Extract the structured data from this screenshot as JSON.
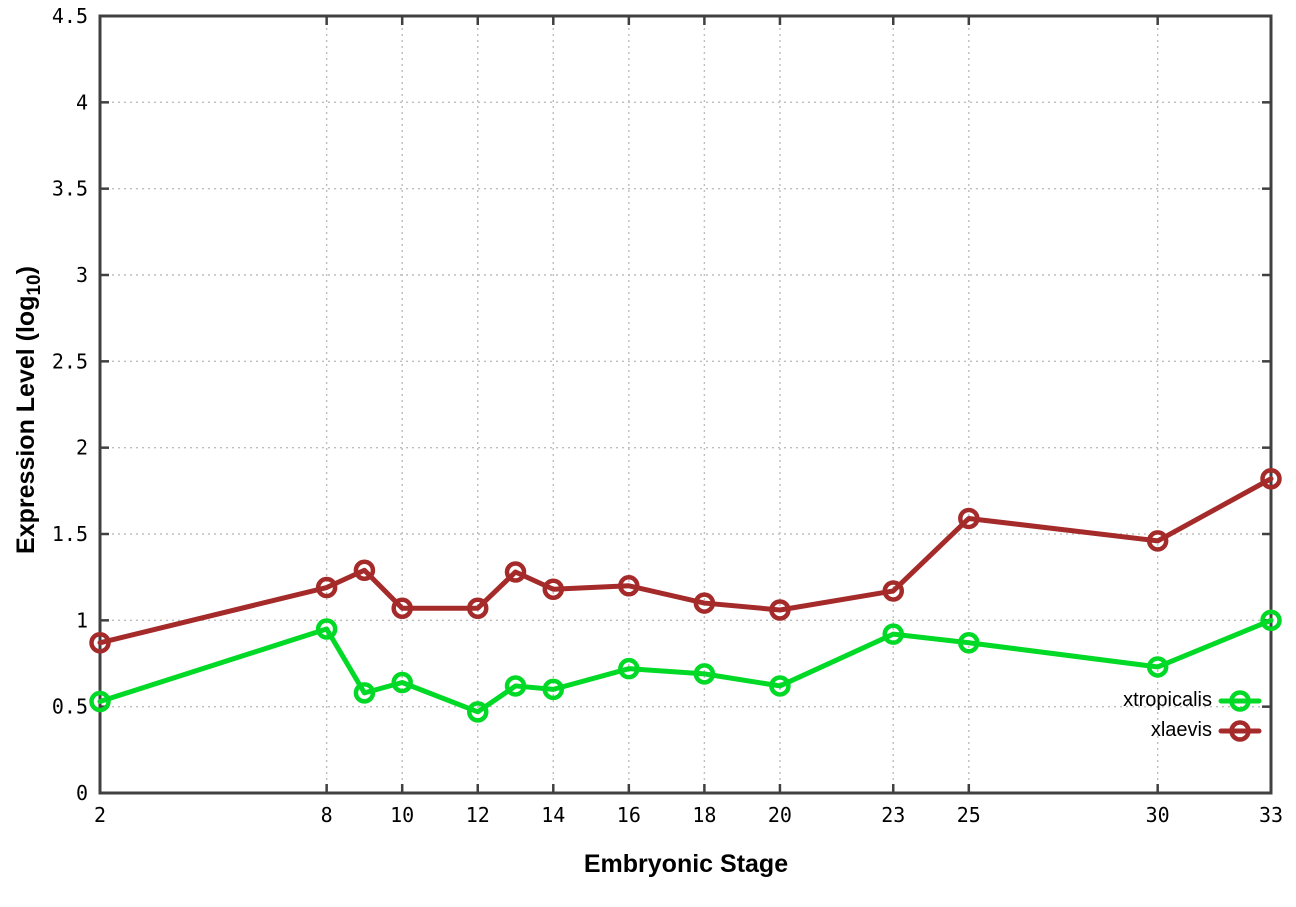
{
  "chart_data": {
    "type": "line",
    "title": "",
    "xlabel": "Embryonic Stage",
    "ylabel": "Expression Level (log10)",
    "xlim": [
      2,
      33
    ],
    "ylim": [
      0,
      4.5
    ],
    "grid": true,
    "legend_position": "inside-bottom-right",
    "xticks": [
      2,
      8,
      10,
      12,
      14,
      16,
      18,
      20,
      23,
      25,
      30,
      33
    ],
    "yticks": [
      0,
      0.5,
      1,
      1.5,
      2,
      2.5,
      3,
      3.5,
      4,
      4.5
    ],
    "x": [
      2,
      8,
      9,
      10,
      12,
      13,
      14,
      16,
      18,
      20,
      23,
      25,
      30,
      33
    ],
    "series": [
      {
        "name": "xtropicalis",
        "color": "#00d926",
        "marker": "open-circle",
        "values": [
          0.53,
          0.95,
          0.58,
          0.64,
          0.47,
          0.62,
          0.6,
          0.72,
          0.69,
          0.62,
          0.92,
          0.87,
          0.73,
          1.0
        ]
      },
      {
        "name": "xlaevis",
        "color": "#a52a2a",
        "marker": "open-circle",
        "values": [
          0.87,
          1.19,
          1.29,
          1.07,
          1.07,
          1.28,
          1.18,
          1.2,
          1.1,
          1.06,
          1.17,
          1.59,
          1.46,
          1.82
        ]
      }
    ]
  },
  "labels": {
    "xlabel": "Embryonic Stage",
    "ylabel_main": "Expression Level (log",
    "ylabel_sub": "10",
    "ylabel_close": ")"
  },
  "style": {
    "border_color": "#404040",
    "grid_color": "#bdbdbd",
    "tick_color": "#404040",
    "background": "#ffffff"
  }
}
